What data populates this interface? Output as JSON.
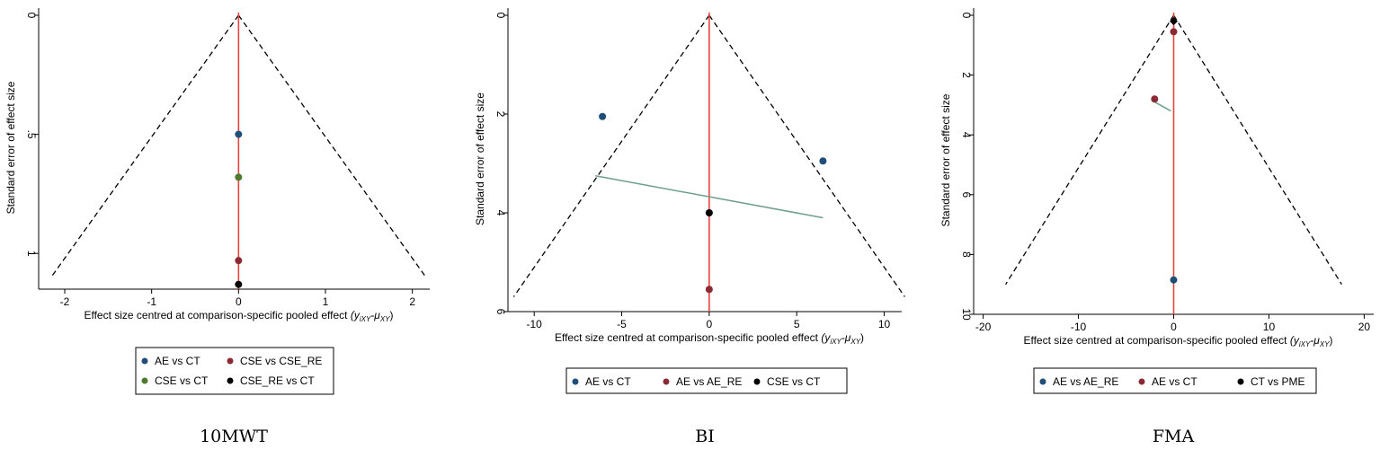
{
  "colors": {
    "AE_CT": "#1f4e79",
    "CSE_CSERE": "#8b2a35",
    "CSE_CT": "#4e7a2e",
    "CSERE_CT": "#000000",
    "AE_AERE": "#1f4e79",
    "CT_PME": "#000000",
    "pooled_line": "#e8453c",
    "regression_line": "#6f9e8e",
    "funnel": "#000000"
  },
  "chart_data": [
    {
      "type": "scatter",
      "panel_label": "10MWT",
      "xlabel_main": "Effect size centred at comparison-specific pooled effect",
      "xlabel_sym": "(y",
      "xlabel_sub1": "iXY",
      "xlabel_mid": "-μ",
      "xlabel_sub2": "XY",
      "xlabel_end": ")",
      "ylabel": "Standard error of effect size",
      "xlim": [
        -2.3,
        2.2
      ],
      "ylim": [
        0,
        1.15
      ],
      "y_reversed": true,
      "xticks": [
        -2,
        -1,
        0,
        1,
        2
      ],
      "xtick_labels": [
        "-2",
        "-1",
        "0",
        "1",
        "2"
      ],
      "yticks": [
        0,
        0.5,
        1
      ],
      "ytick_labels": [
        "0",
        ".5",
        "1"
      ],
      "funnel_max_se": 1.1,
      "funnel_z": 1.96,
      "points": [
        {
          "x": 0,
          "y": 0.5,
          "color_key": "AE_CT"
        },
        {
          "x": 0,
          "y": 0.68,
          "color_key": "CSE_CT"
        },
        {
          "x": 0,
          "y": 1.03,
          "color_key": "CSE_CSERE"
        },
        {
          "x": 0,
          "y": 1.13,
          "color_key": "CSERE_CT"
        }
      ],
      "regression": [],
      "legend": [
        {
          "label": "AE vs CT",
          "color_key": "AE_CT"
        },
        {
          "label": "CSE vs CSE_RE",
          "color_key": "CSE_CSERE"
        },
        {
          "label": "CSE vs CT",
          "color_key": "CSE_CT"
        },
        {
          "label": "CSE_RE vs CT",
          "color_key": "CSERE_CT"
        }
      ]
    },
    {
      "type": "scatter",
      "panel_label": "BI",
      "xlabel_main": "Effect size centred at comparison-specific pooled effect",
      "xlabel_sym": "(y",
      "xlabel_sub1": "iXY",
      "xlabel_mid": "-μ",
      "xlabel_sub2": "XY",
      "xlabel_end": ")",
      "ylabel": "Standard error of effect size",
      "xlim": [
        -11.5,
        11
      ],
      "ylim": [
        0,
        6
      ],
      "y_reversed": true,
      "xticks": [
        -10,
        -5,
        0,
        5,
        10
      ],
      "xtick_labels": [
        "-10",
        "-5",
        "0",
        "5",
        "10"
      ],
      "yticks": [
        0,
        2,
        4,
        6
      ],
      "ytick_labels": [
        "0",
        "2",
        "4",
        "6"
      ],
      "funnel_max_se": 5.7,
      "funnel_z": 1.96,
      "points": [
        {
          "x": -6.1,
          "y": 2.05,
          "color_key": "AE_CT"
        },
        {
          "x": 6.5,
          "y": 2.95,
          "color_key": "AE_CT"
        },
        {
          "x": 0,
          "y": 4.0,
          "color_key": "CSERE_CT"
        },
        {
          "x": 0,
          "y": 5.55,
          "color_key": "CSE_CSERE"
        }
      ],
      "regression": [
        {
          "x1": -6.5,
          "y1": 3.25,
          "x2": 6.5,
          "y2": 4.1
        }
      ],
      "legend": [
        {
          "label": "AE vs CT",
          "color_key": "AE_CT"
        },
        {
          "label": "AE vs AE_RE",
          "color_key": "CSE_CSERE"
        },
        {
          "label": "CSE vs CT",
          "color_key": "CSERE_CT"
        }
      ]
    },
    {
      "type": "scatter",
      "panel_label": "FMA",
      "xlabel_main": "Effect size centred at comparison-specific pooled effect",
      "xlabel_sym": "(y",
      "xlabel_sub1": "iXY",
      "xlabel_mid": "-μ",
      "xlabel_sub2": "XY",
      "xlabel_end": ")",
      "ylabel": "Standard error of effect size",
      "xlim": [
        -21,
        21
      ],
      "ylim": [
        0,
        10
      ],
      "y_reversed": true,
      "xticks": [
        -20,
        -10,
        0,
        10,
        20
      ],
      "xtick_labels": [
        "-20",
        "-10",
        "0",
        "10",
        "20"
      ],
      "yticks": [
        0,
        2,
        4,
        6,
        8,
        10
      ],
      "ytick_labels": [
        "0",
        "2",
        "4",
        "6",
        "8",
        "10"
      ],
      "funnel_max_se": 9.0,
      "funnel_z": 1.96,
      "points": [
        {
          "x": 0,
          "y": 0.2,
          "color_key": "CT_PME"
        },
        {
          "x": 0,
          "y": 0.55,
          "color_key": "CSE_CSERE"
        },
        {
          "x": -2.0,
          "y": 2.8,
          "color_key": "CSE_CSERE"
        },
        {
          "x": 0,
          "y": 8.85,
          "color_key": "AE_AERE"
        }
      ],
      "regression": [
        {
          "x1": -2.0,
          "y1": 2.9,
          "x2": -0.3,
          "y2": 3.2
        }
      ],
      "legend": [
        {
          "label": "AE vs AE_RE",
          "color_key": "AE_AERE"
        },
        {
          "label": "AE vs CT",
          "color_key": "CSE_CSERE"
        },
        {
          "label": "CT vs PME",
          "color_key": "CT_PME"
        }
      ]
    }
  ]
}
